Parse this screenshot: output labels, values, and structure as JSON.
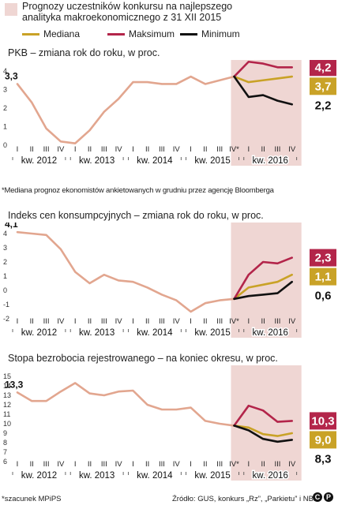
{
  "header": {
    "title": "Prognozy uczestników konkursu na najlepszego analityka makroekonomicznego z 31 XII 2015",
    "legend": [
      {
        "label": "Mediana",
        "color": "#c9a227"
      },
      {
        "label": "Maksimum",
        "color": "#b3254a"
      },
      {
        "label": "Minimum",
        "color": "#111111"
      }
    ]
  },
  "colors": {
    "history": "#e2a68f",
    "forecast_band": "#efd6d3",
    "median": "#c9a227",
    "max": "#b3254a",
    "min": "#111111"
  },
  "quarter_labels": [
    "I",
    "II",
    "III",
    "IV",
    "I",
    "II",
    "III",
    "IV",
    "I",
    "II",
    "III",
    "IV",
    "I",
    "II",
    "III",
    "IV*",
    "I",
    "II",
    "III",
    "IV"
  ],
  "year_labels": [
    "kw. 2012",
    "kw. 2013",
    "kw. 2014",
    "kw. 2015",
    "kw. 2016"
  ],
  "footnote_gdp": "*Mediana prognoz ekonomistów ankietowanych w grudniu przez agencję Bloomberga",
  "footer": {
    "left": "*szacunek MPiPS",
    "right": "Źródło: GUS, konkurs „Rz”, „Parkietu” i NBP"
  },
  "chart_data": [
    {
      "type": "line",
      "title": "PKB – zmiana rok do roku, w proc.",
      "ylim": [
        0,
        4
      ],
      "yticks": [
        0,
        1,
        2,
        3,
        4
      ],
      "x": [
        "I 2012",
        "II 2012",
        "III 2012",
        "IV 2012",
        "I 2013",
        "II 2013",
        "III 2013",
        "IV 2013",
        "I 2014",
        "II 2014",
        "III 2014",
        "IV 2014",
        "I 2015",
        "II 2015",
        "III 2015",
        "IV 2015",
        "I 2016",
        "II 2016",
        "III 2016",
        "IV 2016"
      ],
      "series": [
        {
          "values": [
            3.3,
            2.3,
            0.9,
            0.2,
            0.1,
            0.8,
            1.8,
            2.5,
            3.4,
            3.4,
            3.3,
            3.3,
            3.7,
            3.3,
            3.5,
            3.7,
            null,
            null,
            null,
            null
          ]
        },
        {
          "name": "Mediana",
          "values": [
            null,
            null,
            null,
            null,
            null,
            null,
            null,
            null,
            null,
            null,
            null,
            null,
            null,
            null,
            null,
            3.7,
            3.4,
            3.5,
            3.6,
            3.7
          ]
        },
        {
          "name": "Maksimum",
          "values": [
            null,
            null,
            null,
            null,
            null,
            null,
            null,
            null,
            null,
            null,
            null,
            null,
            null,
            null,
            null,
            3.7,
            4.5,
            4.4,
            4.2,
            4.2
          ]
        },
        {
          "name": "Minimum",
          "values": [
            null,
            null,
            null,
            null,
            null,
            null,
            null,
            null,
            null,
            null,
            null,
            null,
            null,
            null,
            null,
            3.7,
            2.6,
            2.7,
            2.4,
            2.2
          ]
        }
      ],
      "start_label": "3,3",
      "end_labels": {
        "max": "4,2",
        "median": "3,7",
        "min": "2,2"
      },
      "shaded_from": "IV 2015"
    },
    {
      "type": "line",
      "title": "Indeks cen konsumpcyjnych – zmiana rok do roku, w proc.",
      "ylim": [
        -2,
        4
      ],
      "yticks": [
        -2,
        -1,
        0,
        1,
        2,
        3,
        4
      ],
      "x": [
        "I 2012",
        "II 2012",
        "III 2012",
        "IV 2012",
        "I 2013",
        "II 2013",
        "III 2013",
        "IV 2013",
        "I 2014",
        "II 2014",
        "III 2014",
        "IV 2014",
        "I 2015",
        "II 2015",
        "III 2015",
        "IV 2015",
        "I 2016",
        "II 2016",
        "III 2016",
        "IV 2016"
      ],
      "series": [
        {
          "values": [
            4.1,
            4.0,
            3.9,
            2.9,
            1.3,
            0.5,
            1.1,
            0.7,
            0.6,
            0.2,
            -0.3,
            -0.7,
            -1.5,
            -0.9,
            -0.7,
            -0.6,
            null,
            null,
            null,
            null
          ]
        },
        {
          "name": "Mediana",
          "values": [
            null,
            null,
            null,
            null,
            null,
            null,
            null,
            null,
            null,
            null,
            null,
            null,
            null,
            null,
            null,
            -0.6,
            0.2,
            0.4,
            0.6,
            1.1
          ]
        },
        {
          "name": "Maksimum",
          "values": [
            null,
            null,
            null,
            null,
            null,
            null,
            null,
            null,
            null,
            null,
            null,
            null,
            null,
            null,
            null,
            -0.6,
            1.1,
            2.0,
            1.9,
            2.3
          ]
        },
        {
          "name": "Minimum",
          "values": [
            null,
            null,
            null,
            null,
            null,
            null,
            null,
            null,
            null,
            null,
            null,
            null,
            null,
            null,
            null,
            -0.6,
            -0.4,
            -0.3,
            -0.2,
            0.6
          ]
        }
      ],
      "start_label": "4,1",
      "end_labels": {
        "max": "2,3",
        "median": "1,1",
        "min": "0,6"
      },
      "shaded_from": "IV 2015"
    },
    {
      "type": "line",
      "title": "Stopa bezrobocia rejestrowanego – na koniec okresu, w proc.",
      "ylim": [
        6,
        15
      ],
      "yticks": [
        6,
        7,
        8,
        9,
        10,
        11,
        12,
        13,
        14,
        15
      ],
      "x": [
        "I 2012",
        "II 2012",
        "III 2012",
        "IV 2012",
        "I 2013",
        "II 2013",
        "III 2013",
        "IV 2013",
        "I 2014",
        "II 2014",
        "III 2014",
        "IV 2014",
        "I 2015",
        "II 2015",
        "III 2015",
        "IV 2015",
        "I 2016",
        "II 2016",
        "III 2016",
        "IV 2016"
      ],
      "series": [
        {
          "values": [
            13.3,
            12.4,
            12.4,
            13.4,
            14.3,
            13.2,
            13.0,
            13.4,
            13.5,
            12.0,
            11.5,
            11.5,
            11.7,
            10.3,
            10.0,
            9.8,
            null,
            null,
            null,
            null
          ]
        },
        {
          "name": "Mediana",
          "values": [
            null,
            null,
            null,
            null,
            null,
            null,
            null,
            null,
            null,
            null,
            null,
            null,
            null,
            null,
            null,
            9.8,
            9.6,
            8.9,
            8.7,
            9.0
          ]
        },
        {
          "name": "Maksimum",
          "values": [
            null,
            null,
            null,
            null,
            null,
            null,
            null,
            null,
            null,
            null,
            null,
            null,
            null,
            null,
            null,
            9.8,
            11.9,
            11.4,
            10.2,
            10.3
          ]
        },
        {
          "name": "Minimum",
          "values": [
            null,
            null,
            null,
            null,
            null,
            null,
            null,
            null,
            null,
            null,
            null,
            null,
            null,
            null,
            null,
            9.8,
            9.3,
            8.4,
            8.1,
            8.3
          ]
        }
      ],
      "start_label": "13,3",
      "end_labels": {
        "max": "10,3",
        "median": "9,0",
        "min": "8,3"
      },
      "shaded_from": "IV 2015"
    }
  ]
}
